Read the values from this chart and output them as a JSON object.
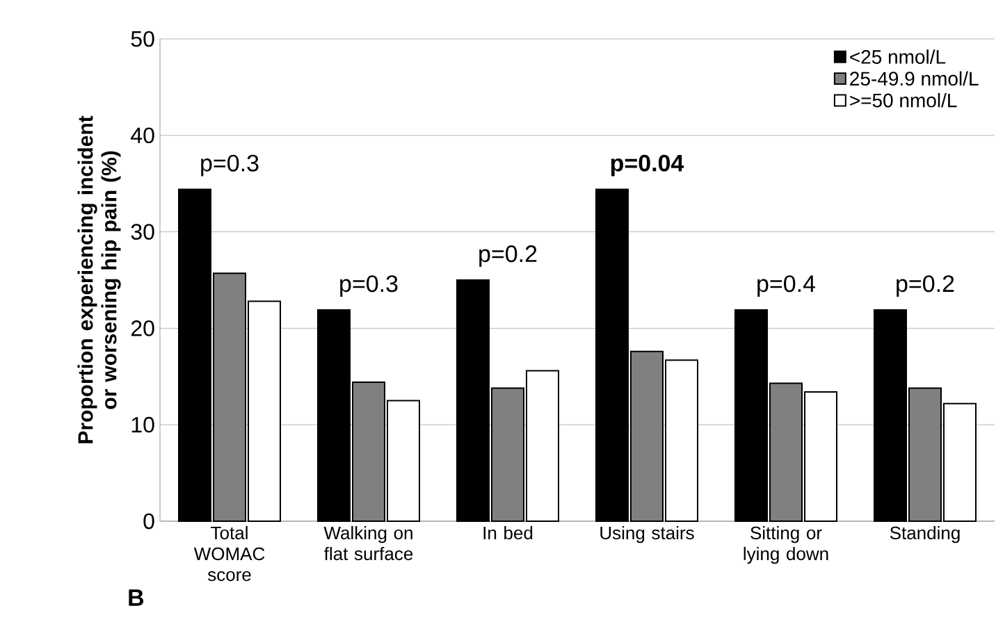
{
  "chart_data": {
    "type": "bar",
    "ylabel": "Proportion experiencing incident or worsening hip pain (%)",
    "categories": [
      "Total WOMAC score",
      "Walking on flat surface",
      "In bed",
      "Using stairs",
      "Sitting or lying down",
      "Standing"
    ],
    "series": [
      {
        "name": "<25 nmol/L",
        "color": "#000000",
        "values": [
          34.4,
          21.9,
          25.0,
          34.4,
          21.9,
          21.9
        ]
      },
      {
        "name": "25-49.9 nmol/L",
        "color": "#808080",
        "values": [
          25.7,
          14.4,
          13.8,
          17.6,
          14.3,
          13.8
        ]
      },
      {
        "name": ">=50 nmol/L",
        "color": "#ffffff",
        "values": [
          22.8,
          12.5,
          15.6,
          16.7,
          13.4,
          12.2
        ]
      }
    ],
    "ylim": [
      0,
      50
    ],
    "yticks": [
      0,
      10,
      20,
      30,
      40,
      50
    ],
    "grid": "y",
    "legend": "top right",
    "annotations": [
      "p=0.3",
      "p=0.3",
      "p=0.2",
      "**p=0.04**",
      "p=0.4",
      "p=0.2",
      "B"
    ]
  }
}
